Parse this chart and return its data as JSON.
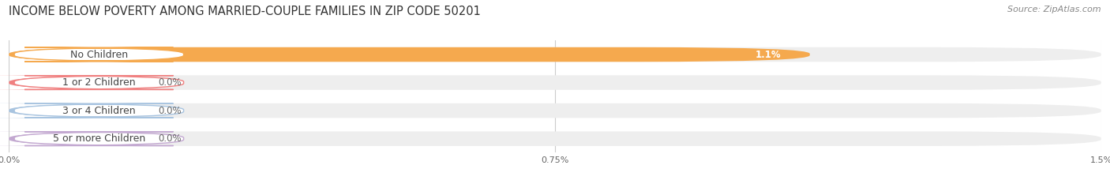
{
  "title": "INCOME BELOW POVERTY AMONG MARRIED-COUPLE FAMILIES IN ZIP CODE 50201",
  "source": "Source: ZipAtlas.com",
  "categories": [
    "No Children",
    "1 or 2 Children",
    "3 or 4 Children",
    "5 or more Children"
  ],
  "values": [
    1.1,
    0.0,
    0.0,
    0.0
  ],
  "display_values": [
    "1.1%",
    "0.0%",
    "0.0%",
    "0.0%"
  ],
  "bar_colors": [
    "#F5A94E",
    "#F08080",
    "#A8C4E0",
    "#C3A8D1"
  ],
  "xlim": [
    0,
    1.5
  ],
  "xticks": [
    0.0,
    0.75,
    1.5
  ],
  "xticklabels": [
    "0.0%",
    "0.75%",
    "1.5%"
  ],
  "background_color": "#ffffff",
  "bar_bg_color": "#eeeeee",
  "zero_bar_width": 0.18,
  "title_fontsize": 10.5,
  "source_fontsize": 8,
  "label_fontsize": 9,
  "value_fontsize": 8.5
}
